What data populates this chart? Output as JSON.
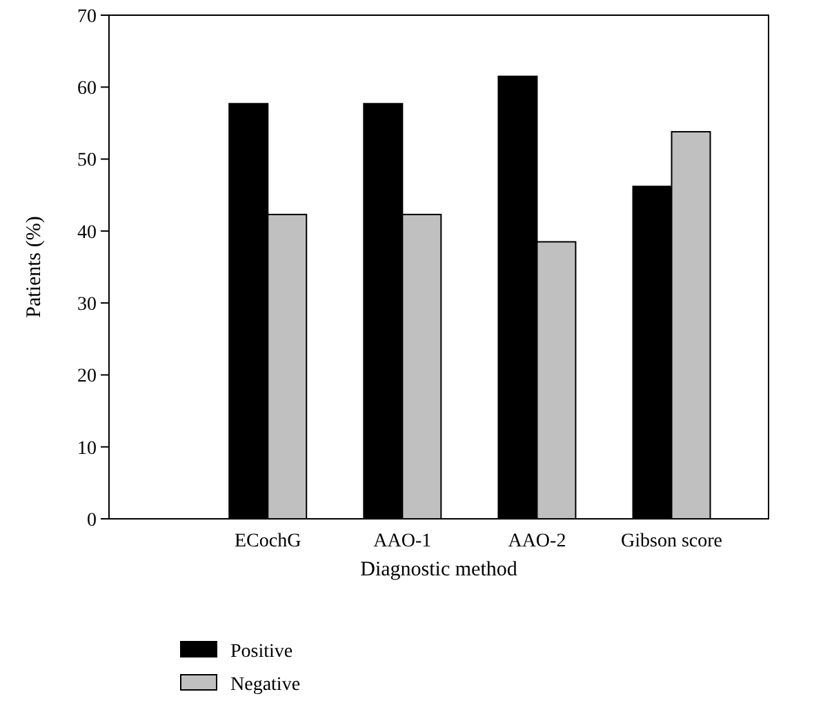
{
  "chart_data": {
    "type": "bar",
    "xlabel": "Diagnostic method",
    "ylabel": "Patients (%)",
    "categories": [
      "ECochG",
      "AAO-1",
      "AAO-2",
      "Gibson score"
    ],
    "series": [
      {
        "name": "Positive",
        "color": "#000000",
        "values": [
          57.7,
          57.7,
          61.5,
          46.2
        ]
      },
      {
        "name": "Negative",
        "color": "#c0c0c0",
        "values": [
          42.3,
          42.3,
          38.5,
          53.8
        ]
      }
    ],
    "ylim": [
      0,
      70
    ],
    "yticks": [
      0,
      10,
      20,
      30,
      40,
      50,
      60,
      70
    ],
    "grid": false,
    "legend": "bottom"
  }
}
